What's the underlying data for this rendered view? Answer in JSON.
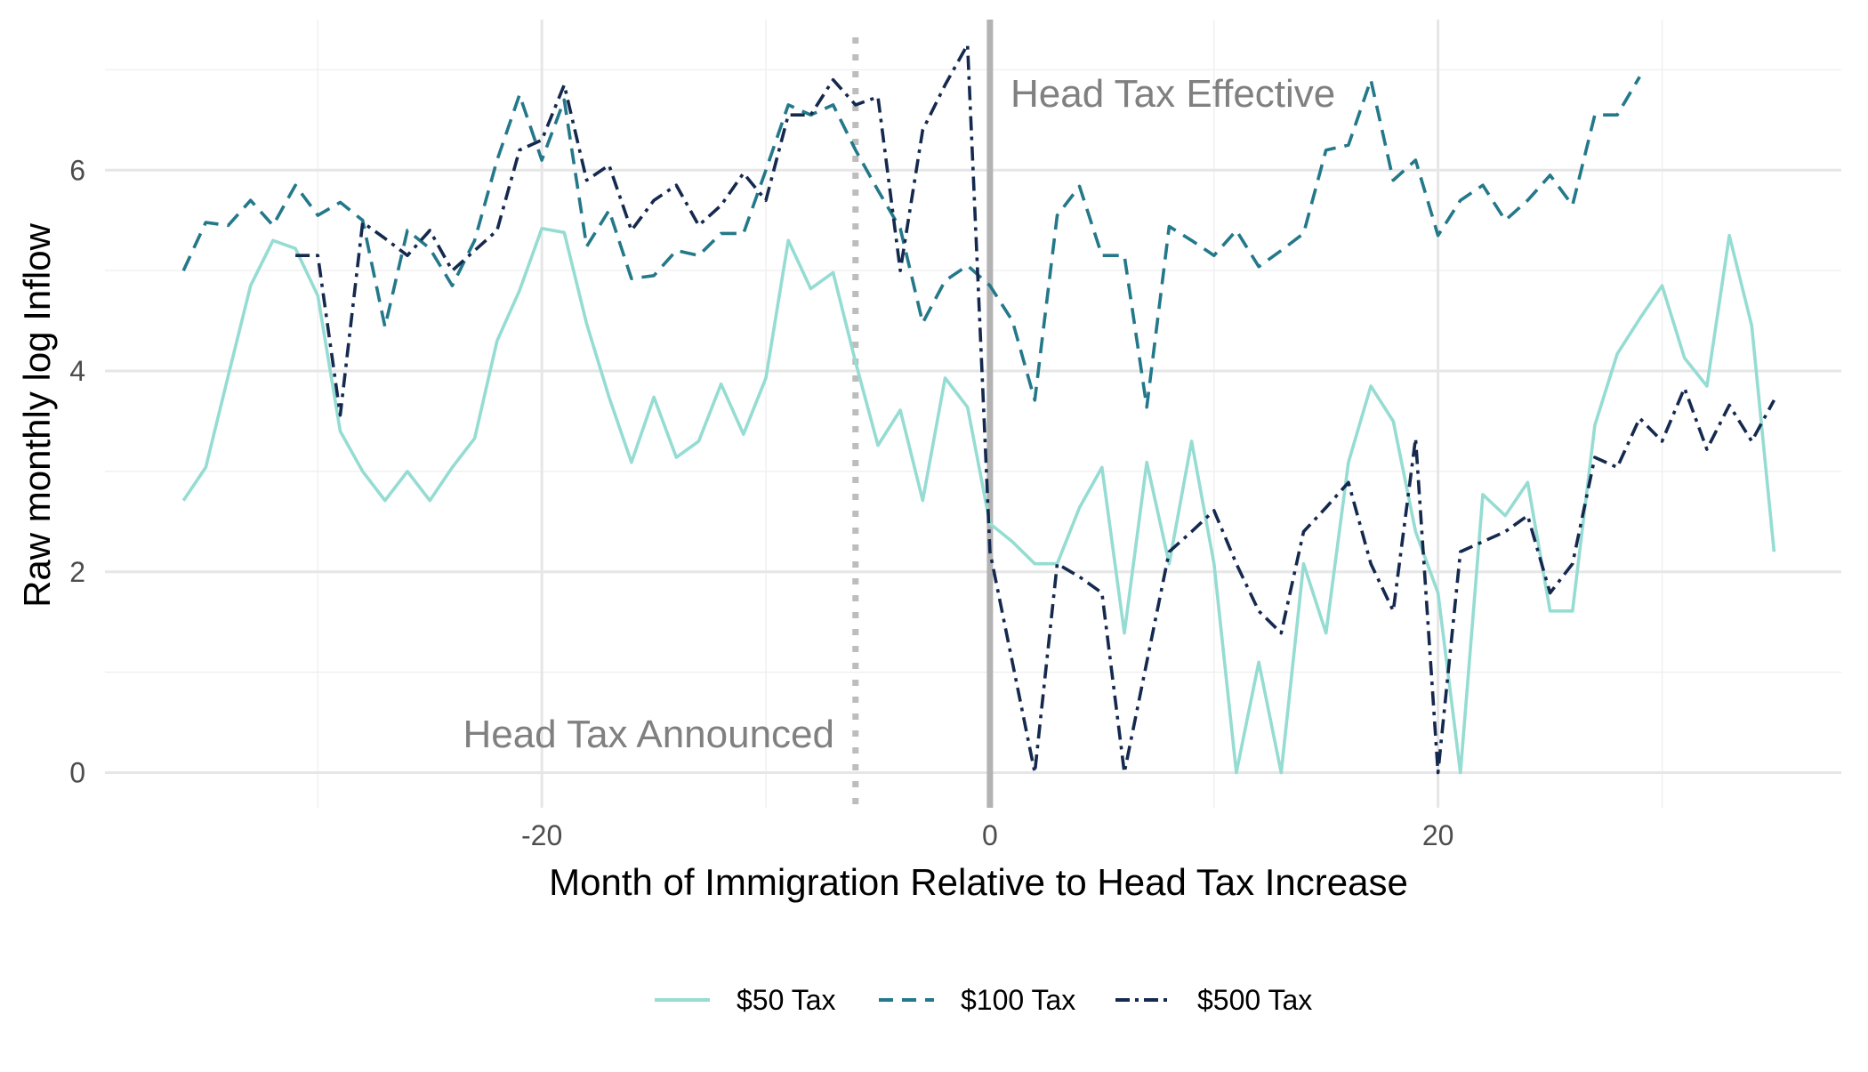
{
  "chart_data": {
    "type": "line",
    "title": "",
    "xlabel": "Month of Immigration Relative to Head Tax Increase",
    "ylabel": "Raw monthly log Inflow",
    "xlim": [
      -39.5,
      38
    ],
    "ylim": [
      -0.35,
      7.5
    ],
    "x_ticks": [
      -20,
      0,
      20
    ],
    "x_tick_labels": [
      "-20",
      "0",
      "20"
    ],
    "y_ticks": [
      0,
      2,
      4,
      6
    ],
    "y_tick_labels": [
      "0",
      "2",
      "4",
      "6"
    ],
    "grid": true,
    "legend_position": "bottom",
    "annotations": [
      {
        "text": "Head Tax Announced",
        "x": -6,
        "style": "dotted",
        "color": "#bdbdbd"
      },
      {
        "text": "Head Tax Effective",
        "x": 0,
        "style": "solid",
        "color": "#b3b3b3"
      }
    ],
    "series": [
      {
        "name": "$50 Tax",
        "color": "#95dcd3",
        "dash": "solid",
        "x": [
          -36,
          -35,
          -34,
          -33,
          -32,
          -31,
          -30,
          -29,
          -28,
          -27,
          -26,
          -25,
          -24,
          -23,
          -22,
          -21,
          -20,
          -19,
          -18,
          -17,
          -16,
          -15,
          -14,
          -13,
          -12,
          -11,
          -10,
          -9,
          -8,
          -7,
          -6,
          -5,
          -4,
          -3,
          -2,
          -1,
          0,
          1,
          2,
          3,
          4,
          5,
          6,
          7,
          8,
          9,
          10,
          11,
          12,
          13,
          14,
          15,
          16,
          17,
          18,
          19,
          20,
          21,
          22,
          23,
          24,
          25,
          26,
          27,
          28,
          29,
          30,
          31,
          32,
          33,
          34,
          35
        ],
        "values": [
          2.71,
          3.04,
          3.95,
          4.85,
          5.3,
          5.22,
          4.75,
          3.4,
          3.0,
          2.71,
          3.0,
          2.71,
          3.04,
          3.33,
          4.3,
          4.8,
          5.42,
          5.38,
          4.47,
          3.74,
          3.09,
          3.74,
          3.14,
          3.3,
          3.87,
          3.37,
          3.93,
          5.3,
          4.82,
          4.98,
          4.09,
          3.26,
          3.61,
          2.71,
          3.93,
          3.64,
          2.48,
          2.3,
          2.08,
          2.08,
          2.64,
          3.04,
          1.39,
          3.09,
          2.08,
          3.3,
          2.08,
          0.0,
          1.1,
          0.0,
          2.08,
          1.39,
          3.09,
          3.85,
          3.5,
          2.4,
          1.79,
          0.0,
          2.77,
          2.56,
          2.89,
          1.61,
          1.61,
          3.46,
          4.17,
          4.52,
          4.85,
          4.13,
          3.85,
          5.35,
          4.45,
          2.2
        ]
      },
      {
        "name": "$100 Tax",
        "color": "#23788a",
        "dash": "dashed",
        "x": [
          -36,
          -35,
          -34,
          -33,
          -32,
          -31,
          -30,
          -29,
          -28,
          -27,
          -26,
          -25,
          -24,
          -23,
          -22,
          -21,
          -20,
          -19,
          -18,
          -17,
          -16,
          -15,
          -14,
          -13,
          -12,
          -11,
          -10,
          -9,
          -8,
          -7,
          -6,
          -5,
          -4,
          -3,
          -2,
          -1,
          0,
          1,
          2,
          3,
          4,
          5,
          6,
          7,
          8,
          9,
          10,
          11,
          12,
          13,
          14,
          15,
          16,
          17,
          18,
          19,
          20,
          21,
          22,
          23,
          24,
          25,
          26,
          27,
          28,
          29
        ],
        "values": [
          5.0,
          5.48,
          5.45,
          5.7,
          5.45,
          5.85,
          5.55,
          5.68,
          5.5,
          4.44,
          5.4,
          5.22,
          4.85,
          5.3,
          6.1,
          6.75,
          6.1,
          6.7,
          5.24,
          5.6,
          4.92,
          4.95,
          5.2,
          5.15,
          5.37,
          5.37,
          6.0,
          6.65,
          6.55,
          6.65,
          6.2,
          5.8,
          5.42,
          4.48,
          4.9,
          5.05,
          4.85,
          4.5,
          3.71,
          5.55,
          5.84,
          5.15,
          5.15,
          3.64,
          5.44,
          5.3,
          5.15,
          5.4,
          5.04,
          5.2,
          5.37,
          6.2,
          6.25,
          6.9,
          5.9,
          6.1,
          5.35,
          5.7,
          5.85,
          5.5,
          5.7,
          5.95,
          5.65,
          6.55,
          6.55,
          6.93
        ]
      },
      {
        "name": "$500 Tax",
        "color": "#15294f",
        "dash": "dashdot",
        "x": [
          -31,
          -30,
          -29,
          -28,
          -27,
          -26,
          -25,
          -24,
          -23,
          -22,
          -21,
          -20,
          -19,
          -18,
          -17,
          -16,
          -15,
          -14,
          -13,
          -12,
          -11,
          -10,
          -9,
          -8,
          -7,
          -6,
          -5,
          -4,
          -3,
          -2,
          -1,
          0,
          1,
          2,
          3,
          4,
          5,
          6,
          7,
          8,
          9,
          10,
          11,
          12,
          13,
          14,
          15,
          16,
          17,
          18,
          19,
          20,
          21,
          22,
          23,
          24,
          25,
          26,
          27,
          28,
          29,
          30,
          31,
          32,
          33,
          34,
          35
        ],
        "values": [
          5.15,
          5.15,
          3.56,
          5.48,
          5.32,
          5.15,
          5.4,
          5.0,
          5.2,
          5.4,
          6.2,
          6.3,
          6.85,
          5.9,
          6.05,
          5.4,
          5.7,
          5.85,
          5.45,
          5.65,
          5.97,
          5.7,
          6.55,
          6.55,
          6.9,
          6.65,
          6.73,
          5.0,
          6.4,
          6.85,
          7.25,
          2.2,
          1.1,
          0.0,
          2.08,
          1.95,
          1.79,
          0.0,
          1.1,
          2.2,
          2.4,
          2.61,
          2.08,
          1.61,
          1.39,
          2.4,
          2.64,
          2.89,
          2.08,
          1.61,
          3.33,
          0.0,
          2.2,
          2.3,
          2.4,
          2.56,
          1.79,
          2.08,
          3.14,
          3.04,
          3.53,
          3.3,
          3.83,
          3.22,
          3.66,
          3.3,
          3.71
        ]
      }
    ]
  }
}
